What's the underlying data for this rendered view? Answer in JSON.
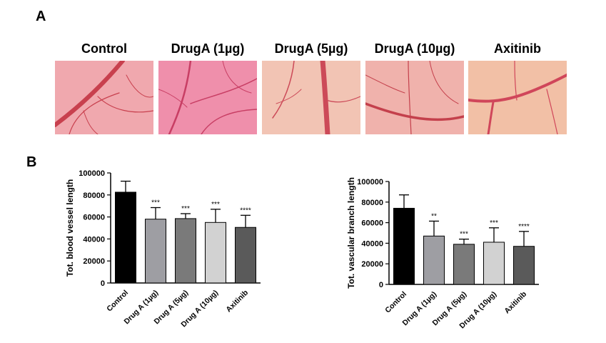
{
  "panels": {
    "a": "A",
    "b": "B"
  },
  "photos": [
    {
      "title": "Control",
      "base": "#f0a8ae",
      "vessel": "#c8404e"
    },
    {
      "title": "DrugA (1µg)",
      "base": "#ef8fab",
      "vessel": "#c83e64"
    },
    {
      "title": "DrugA (5µg)",
      "base": "#f2c4b4",
      "vessel": "#cc4a58"
    },
    {
      "title": "DrugA (10µg)",
      "base": "#f0b2ac",
      "vessel": "#c4404c"
    },
    {
      "title": "Axitinib",
      "base": "#f2c0a6",
      "vessel": "#d0465a"
    }
  ],
  "chart_data": [
    {
      "type": "bar",
      "ylabel": "Tot. blood vessel length",
      "ylim": [
        0,
        100000
      ],
      "yticks": [
        "0",
        "20000",
        "40000",
        "60000",
        "80000",
        "100000"
      ],
      "categories": [
        "Control",
        "Drug A (1µg)",
        "Drug A (5µg)",
        "Drug A (10µg)",
        "Axitinib"
      ],
      "values": [
        82500,
        58000,
        58500,
        55000,
        50500
      ],
      "errors": [
        10000,
        10500,
        4500,
        12000,
        11000
      ],
      "significance": [
        "",
        "***",
        "***",
        "***",
        "****"
      ],
      "colors": [
        "#000000",
        "#9e9ea3",
        "#7a7a7a",
        "#d2d2d2",
        "#5a5a5a"
      ]
    },
    {
      "type": "bar",
      "ylabel": "Tot. vascular branch length",
      "ylim": [
        0,
        100000
      ],
      "yticks": [
        "0",
        "20000",
        "40000",
        "60000",
        "80000",
        "100000"
      ],
      "categories": [
        "Control",
        "Drug A (1µg)",
        "Drug A (5µg)",
        "Drug A (10µg)",
        "Axitinib"
      ],
      "values": [
        74000,
        47000,
        39000,
        41000,
        37000
      ],
      "errors": [
        13000,
        14500,
        5000,
        14000,
        14500
      ],
      "significance": [
        "",
        "**",
        "***",
        "***",
        "****"
      ],
      "colors": [
        "#000000",
        "#9e9ea3",
        "#7a7a7a",
        "#d2d2d2",
        "#5a5a5a"
      ]
    }
  ]
}
